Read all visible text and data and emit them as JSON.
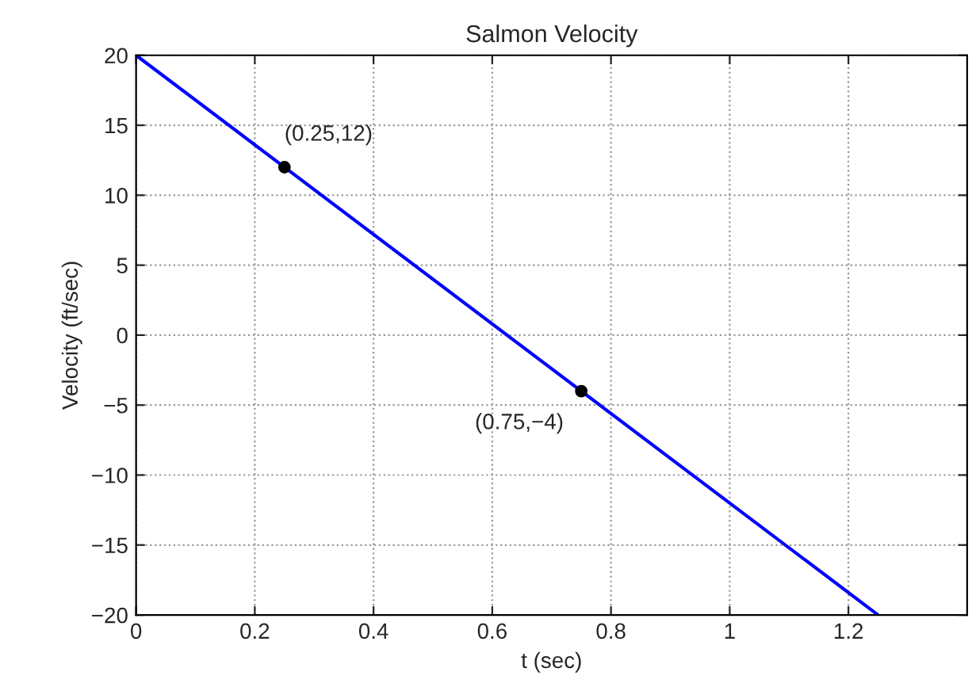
{
  "chart_data": {
    "type": "line",
    "title": "Salmon Velocity",
    "xlabel": "t (sec)",
    "ylabel": "Velocity (ft/sec)",
    "series": [
      {
        "color": "#0000ff",
        "x": [
          0,
          1.25
        ],
        "values": [
          20,
          -20
        ],
        "marker": "none"
      },
      {
        "type": "scatter",
        "color": "#000000",
        "x": [
          0.25,
          0.75
        ],
        "values": [
          12,
          -4
        ],
        "marker": "circle"
      }
    ],
    "annotations": [
      {
        "text": "(0.25,12)",
        "x": 0.25,
        "y": 12
      },
      {
        "text": "(0.75,−4)",
        "x": 0.75,
        "y": -4
      }
    ],
    "xlim": [
      0,
      1.4
    ],
    "xticks": [
      0,
      0.2,
      0.4,
      0.6,
      0.8,
      1,
      1.2
    ],
    "ylim": [
      -20,
      20
    ],
    "yticks": [
      -20,
      -15,
      -10,
      -5,
      0,
      5,
      10,
      15,
      20
    ],
    "grid": true,
    "legend": false
  }
}
